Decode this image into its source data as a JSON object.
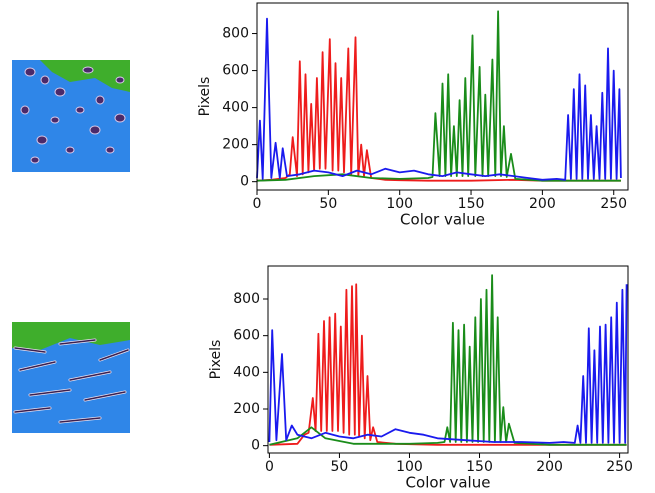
{
  "chart_data": [
    {
      "type": "line",
      "xlabel": "Color value",
      "ylabel": "Pixels",
      "xlim": [
        0,
        260
      ],
      "ylim": [
        -45,
        965
      ],
      "xticks": [
        0,
        50,
        100,
        150,
        200,
        250
      ],
      "yticks": [
        0,
        200,
        400,
        600,
        800
      ],
      "series": [
        {
          "color": "#ee1c1c",
          "x": [
            0,
            10,
            20,
            23,
            25,
            28,
            30,
            32,
            34,
            36,
            38,
            40,
            42,
            44,
            46,
            48,
            51,
            53,
            55,
            57,
            59,
            61,
            64,
            66,
            69,
            71,
            73,
            75,
            77,
            80,
            90,
            100,
            120,
            150,
            180,
            200,
            255
          ],
          "values": [
            5,
            10,
            20,
            40,
            240,
            30,
            650,
            40,
            580,
            50,
            420,
            60,
            560,
            70,
            700,
            70,
            770,
            60,
            640,
            60,
            560,
            50,
            720,
            40,
            780,
            30,
            200,
            30,
            170,
            20,
            10,
            8,
            5,
            5,
            10,
            5,
            5
          ]
        },
        {
          "color": "#1a8c1a",
          "x": [
            0,
            20,
            40,
            60,
            80,
            100,
            120,
            123,
            125,
            128,
            130,
            132,
            134,
            136,
            138,
            140,
            142,
            144,
            146,
            148,
            151,
            153,
            156,
            158,
            160,
            162,
            165,
            167,
            169,
            171,
            173,
            175,
            178,
            181,
            200,
            255
          ],
          "values": [
            5,
            10,
            30,
            40,
            20,
            15,
            20,
            25,
            370,
            30,
            530,
            30,
            580,
            30,
            300,
            30,
            440,
            30,
            560,
            30,
            790,
            30,
            620,
            30,
            470,
            30,
            660,
            30,
            920,
            30,
            300,
            25,
            150,
            15,
            5,
            5
          ]
        },
        {
          "color": "#1a1aee",
          "x": [
            0,
            2,
            4,
            7,
            10,
            13,
            16,
            18,
            21,
            30,
            40,
            50,
            60,
            70,
            80,
            90,
            100,
            110,
            120,
            130,
            140,
            150,
            160,
            170,
            180,
            190,
            200,
            210,
            216,
            218,
            220,
            222,
            224,
            226,
            228,
            230,
            232,
            234,
            236,
            238,
            240,
            242,
            244,
            246,
            248,
            250,
            252,
            254,
            255
          ],
          "values": [
            20,
            330,
            15,
            880,
            20,
            210,
            20,
            180,
            30,
            40,
            60,
            50,
            30,
            60,
            40,
            70,
            50,
            60,
            40,
            30,
            50,
            40,
            30,
            40,
            30,
            20,
            10,
            15,
            10,
            360,
            15,
            500,
            15,
            580,
            15,
            520,
            15,
            360,
            15,
            300,
            15,
            480,
            15,
            720,
            15,
            600,
            15,
            500,
            20
          ]
        }
      ]
    },
    {
      "type": "line",
      "xlabel": "Color value",
      "ylabel": "Pixels",
      "xlim": [
        -1,
        256
      ],
      "ylim": [
        -40,
        980
      ],
      "xticks": [
        0,
        50,
        100,
        150,
        200,
        250
      ],
      "yticks": [
        0,
        200,
        400,
        600,
        800
      ],
      "series": [
        {
          "color": "#ee1c1c",
          "x": [
            0,
            20,
            25,
            28,
            31,
            33,
            35,
            37,
            39,
            41,
            43,
            45,
            47,
            49,
            51,
            53,
            55,
            57,
            59,
            61,
            62,
            64,
            66,
            68,
            70,
            72,
            74,
            77,
            90,
            120,
            255
          ],
          "values": [
            5,
            10,
            60,
            70,
            260,
            80,
            610,
            80,
            680,
            80,
            700,
            80,
            720,
            80,
            650,
            70,
            850,
            60,
            870,
            60,
            880,
            50,
            600,
            40,
            380,
            30,
            100,
            20,
            10,
            5,
            5
          ]
        },
        {
          "color": "#1a8c1a",
          "x": [
            0,
            20,
            30,
            40,
            60,
            100,
            120,
            125,
            127,
            129,
            131,
            133,
            135,
            137,
            139,
            141,
            143,
            145,
            147,
            149,
            151,
            153,
            155,
            157,
            159,
            161,
            163,
            165,
            167,
            169,
            171,
            175,
            200,
            255
          ],
          "values": [
            5,
            40,
            100,
            40,
            10,
            10,
            15,
            20,
            100,
            20,
            670,
            20,
            630,
            20,
            660,
            20,
            540,
            20,
            700,
            20,
            800,
            20,
            850,
            20,
            930,
            20,
            700,
            20,
            210,
            20,
            120,
            15,
            5,
            5
          ]
        },
        {
          "color": "#1a1aee",
          "x": [
            0,
            2,
            5,
            9,
            12,
            16,
            20,
            30,
            40,
            50,
            60,
            70,
            80,
            90,
            100,
            110,
            120,
            140,
            160,
            180,
            200,
            210,
            218,
            220,
            222,
            224,
            226,
            228,
            230,
            232,
            234,
            236,
            238,
            240,
            242,
            244,
            246,
            248,
            250,
            252,
            254,
            255
          ],
          "values": [
            20,
            630,
            30,
            500,
            30,
            110,
            60,
            40,
            70,
            50,
            40,
            60,
            50,
            90,
            70,
            60,
            40,
            30,
            20,
            20,
            15,
            20,
            15,
            110,
            15,
            380,
            15,
            640,
            15,
            520,
            15,
            650,
            15,
            660,
            15,
            700,
            15,
            780,
            15,
            850,
            15,
            880
          ]
        }
      ]
    }
  ]
}
